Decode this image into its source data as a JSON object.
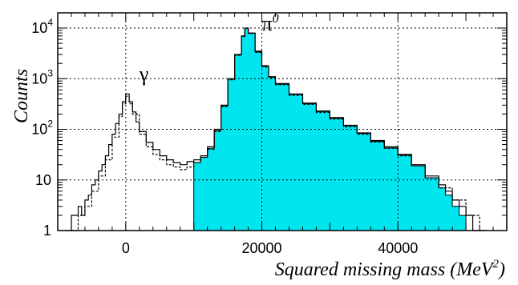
{
  "chart_data": {
    "type": "area",
    "title": "",
    "ylabel": "Counts",
    "xlabel": "Squared missing mass (MeV",
    "xlabel_sup": "2",
    "xlabel_close": ")",
    "xlim": [
      -10000,
      56000
    ],
    "ylim": [
      1,
      20000
    ],
    "yscale": "log",
    "grid": true,
    "x_ticks": [
      0,
      20000,
      40000
    ],
    "y_ticks": [
      {
        "value": 1,
        "base": "1",
        "exp": ""
      },
      {
        "value": 10,
        "base": "10",
        "exp": ""
      },
      {
        "value": 100,
        "base": "10",
        "exp": "2"
      },
      {
        "value": 1000,
        "base": "10",
        "exp": "3"
      },
      {
        "value": 10000,
        "base": "10",
        "exp": "4"
      }
    ],
    "annotations": [
      {
        "text": "γ",
        "x": 2000,
        "y": 900
      },
      {
        "text": "π",
        "sup": "0",
        "x": 20000,
        "y": 9000
      }
    ],
    "series": [
      {
        "style": "solid",
        "x": [
          -9000,
          -8000,
          -7000,
          -6500,
          -6000,
          -5500,
          -5000,
          -4500,
          -4000,
          -3500,
          -3000,
          -2500,
          -2000,
          -1500,
          -1000,
          -500,
          0,
          500,
          1000,
          1500,
          2000,
          3000,
          4000,
          5000,
          6000,
          7000,
          8000,
          9000,
          10000,
          11000,
          12000,
          13000,
          14000,
          15000,
          16000,
          17000,
          17500,
          18000,
          19000,
          20000,
          21000,
          22000,
          24000,
          26000,
          28000,
          30000,
          32000,
          34000,
          36000,
          38000,
          40000,
          42000,
          44000,
          46000,
          47000,
          48000,
          49000,
          50000,
          51000,
          52000,
          53000
        ],
        "y": [
          1,
          2,
          3,
          2,
          4,
          5,
          8,
          10,
          15,
          20,
          30,
          50,
          80,
          130,
          200,
          350,
          500,
          350,
          220,
          140,
          90,
          55,
          40,
          30,
          25,
          22,
          20,
          23,
          25,
          30,
          45,
          100,
          300,
          1000,
          3000,
          7000,
          10000,
          8000,
          3500,
          1800,
          1100,
          800,
          500,
          330,
          230,
          170,
          120,
          85,
          60,
          45,
          32,
          20,
          12,
          8,
          6,
          4,
          3,
          2,
          1,
          1,
          1
        ]
      },
      {
        "style": "dashed",
        "x": [
          -8000,
          -7000,
          -6000,
          -5000,
          -4000,
          -3000,
          -2000,
          -1000,
          -500,
          0,
          500,
          1000,
          2000,
          3000,
          4000,
          5000,
          6000,
          7000,
          8000,
          9000,
          10000,
          11000,
          12000,
          13000,
          14000,
          15000,
          16000,
          17000,
          17500,
          18000,
          19000,
          20000,
          21000,
          22000,
          24000,
          26000,
          28000,
          30000,
          32000,
          34000,
          36000,
          38000,
          40000,
          42000,
          44000,
          46000,
          48000,
          50000,
          52000
        ],
        "y": [
          1,
          2,
          3,
          6,
          12,
          25,
          70,
          180,
          320,
          450,
          320,
          200,
          80,
          45,
          32,
          25,
          20,
          18,
          16,
          18,
          22,
          28,
          40,
          90,
          280,
          950,
          2900,
          6800,
          9800,
          7800,
          3300,
          1700,
          1050,
          760,
          470,
          310,
          215,
          160,
          112,
          80,
          56,
          42,
          30,
          19,
          11,
          7,
          4,
          2,
          1
        ]
      },
      {
        "style": "filled",
        "color": "#00e5ee",
        "x": [
          10000,
          11000,
          12000,
          13000,
          14000,
          15000,
          16000,
          17000,
          17500,
          18000,
          19000,
          20000,
          21000,
          22000,
          24000,
          26000,
          28000,
          30000,
          32000,
          34000,
          36000,
          38000,
          40000,
          42000,
          44000,
          46000,
          47000,
          48000,
          49000,
          50000
        ],
        "y": [
          22,
          28,
          42,
          95,
          290,
          980,
          2950,
          6900,
          9900,
          7900,
          3400,
          1750,
          1080,
          780,
          490,
          320,
          225,
          165,
          118,
          83,
          58,
          43,
          31,
          19,
          11,
          7,
          5,
          3,
          2,
          1
        ]
      }
    ]
  }
}
